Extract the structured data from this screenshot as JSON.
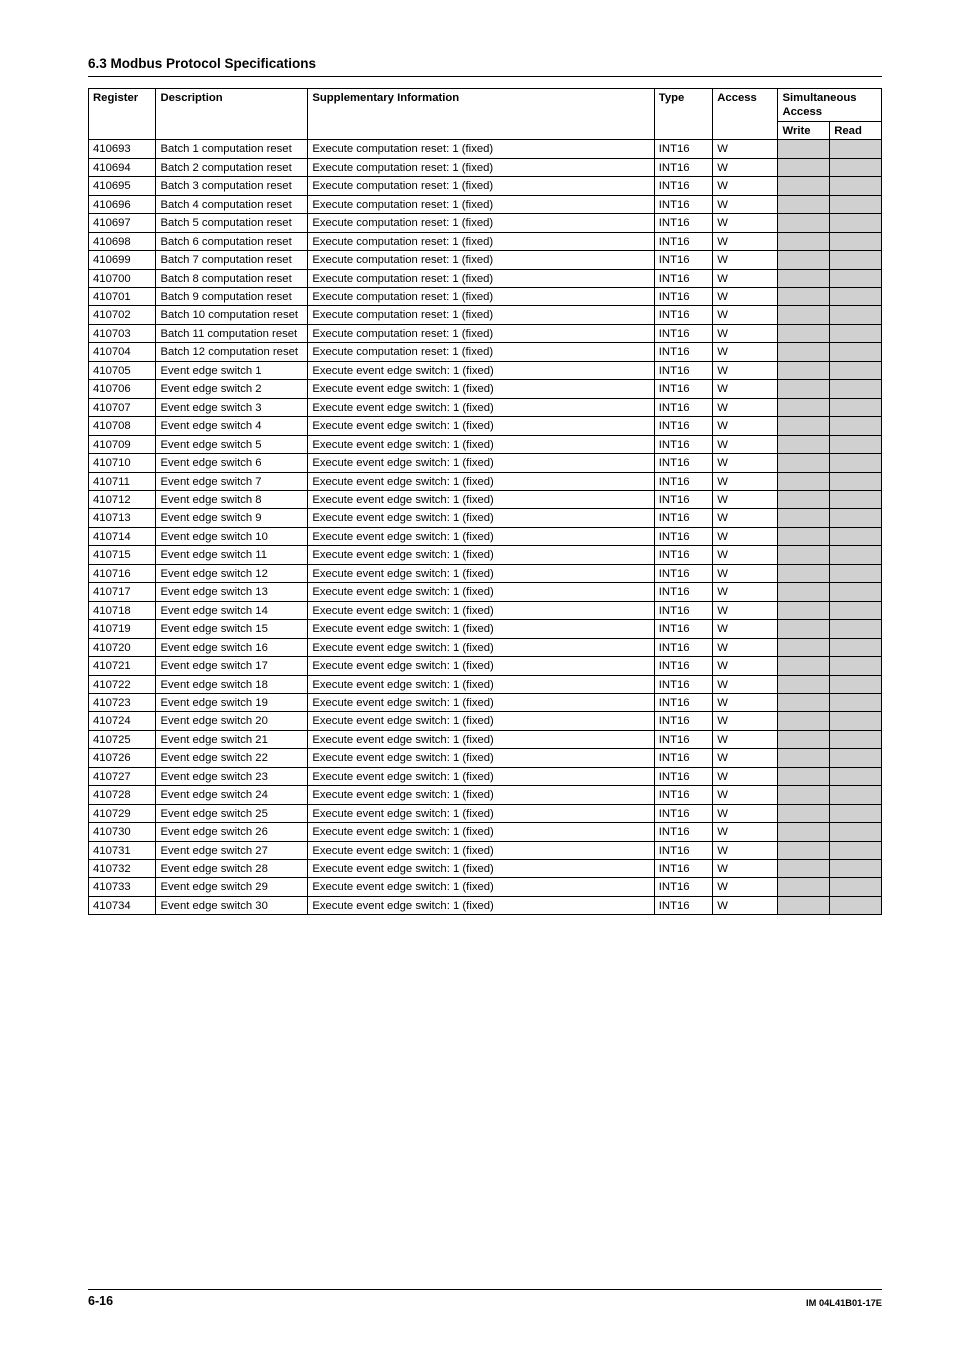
{
  "section_title": "6.3  Modbus Protocol Specifications",
  "headers": {
    "register": "Register",
    "description": "Description",
    "supp": "Supplementary Information",
    "type": "Type",
    "access": "Access",
    "sim_access": "Simultaneous Access",
    "write": "Write",
    "read": "Read"
  },
  "rows": [
    {
      "reg": "410693",
      "desc": "Batch 1 computation reset",
      "supp": "Execute computation reset: 1 (fixed)",
      "type": "INT16",
      "access": "W",
      "write": "",
      "read": ""
    },
    {
      "reg": "410694",
      "desc": "Batch 2 computation reset",
      "supp": "Execute computation reset: 1 (fixed)",
      "type": "INT16",
      "access": "W",
      "write": "",
      "read": ""
    },
    {
      "reg": "410695",
      "desc": "Batch 3 computation reset",
      "supp": "Execute computation reset: 1 (fixed)",
      "type": "INT16",
      "access": "W",
      "write": "",
      "read": ""
    },
    {
      "reg": "410696",
      "desc": "Batch 4 computation reset",
      "supp": "Execute computation reset: 1 (fixed)",
      "type": "INT16",
      "access": "W",
      "write": "",
      "read": ""
    },
    {
      "reg": "410697",
      "desc": "Batch 5 computation reset",
      "supp": "Execute computation reset: 1 (fixed)",
      "type": "INT16",
      "access": "W",
      "write": "",
      "read": ""
    },
    {
      "reg": "410698",
      "desc": "Batch 6 computation reset",
      "supp": "Execute computation reset: 1 (fixed)",
      "type": "INT16",
      "access": "W",
      "write": "",
      "read": ""
    },
    {
      "reg": "410699",
      "desc": "Batch 7 computation reset",
      "supp": "Execute computation reset: 1 (fixed)",
      "type": "INT16",
      "access": "W",
      "write": "",
      "read": ""
    },
    {
      "reg": "410700",
      "desc": "Batch 8 computation reset",
      "supp": "Execute computation reset: 1 (fixed)",
      "type": "INT16",
      "access": "W",
      "write": "",
      "read": ""
    },
    {
      "reg": "410701",
      "desc": "Batch 9 computation reset",
      "supp": "Execute computation reset: 1 (fixed)",
      "type": "INT16",
      "access": "W",
      "write": "",
      "read": ""
    },
    {
      "reg": "410702",
      "desc": "Batch 10 computation reset",
      "supp": "Execute computation reset: 1 (fixed)",
      "type": "INT16",
      "access": "W",
      "write": "",
      "read": ""
    },
    {
      "reg": "410703",
      "desc": "Batch 11 computation reset",
      "supp": "Execute computation reset: 1 (fixed)",
      "type": "INT16",
      "access": "W",
      "write": "",
      "read": ""
    },
    {
      "reg": "410704",
      "desc": "Batch 12 computation reset",
      "supp": "Execute computation reset: 1 (fixed)",
      "type": "INT16",
      "access": "W",
      "write": "",
      "read": ""
    },
    {
      "reg": "410705",
      "desc": "Event edge switch 1",
      "supp": "Execute event edge switch: 1 (fixed)",
      "type": "INT16",
      "access": "W",
      "write": "",
      "read": ""
    },
    {
      "reg": "410706",
      "desc": "Event edge switch 2",
      "supp": "Execute event edge switch: 1 (fixed)",
      "type": "INT16",
      "access": "W",
      "write": "",
      "read": ""
    },
    {
      "reg": "410707",
      "desc": "Event edge switch 3",
      "supp": "Execute event edge switch: 1 (fixed)",
      "type": "INT16",
      "access": "W",
      "write": "",
      "read": ""
    },
    {
      "reg": "410708",
      "desc": "Event edge switch 4",
      "supp": "Execute event edge switch: 1 (fixed)",
      "type": "INT16",
      "access": "W",
      "write": "",
      "read": ""
    },
    {
      "reg": "410709",
      "desc": "Event edge switch 5",
      "supp": "Execute event edge switch: 1 (fixed)",
      "type": "INT16",
      "access": "W",
      "write": "",
      "read": ""
    },
    {
      "reg": "410710",
      "desc": "Event edge switch 6",
      "supp": "Execute event edge switch: 1 (fixed)",
      "type": "INT16",
      "access": "W",
      "write": "",
      "read": ""
    },
    {
      "reg": "410711",
      "desc": "Event edge switch 7",
      "supp": "Execute event edge switch: 1 (fixed)",
      "type": "INT16",
      "access": "W",
      "write": "",
      "read": ""
    },
    {
      "reg": "410712",
      "desc": "Event edge switch 8",
      "supp": "Execute event edge switch: 1 (fixed)",
      "type": "INT16",
      "access": "W",
      "write": "",
      "read": ""
    },
    {
      "reg": "410713",
      "desc": "Event edge switch 9",
      "supp": "Execute event edge switch: 1 (fixed)",
      "type": "INT16",
      "access": "W",
      "write": "",
      "read": ""
    },
    {
      "reg": "410714",
      "desc": "Event edge switch 10",
      "supp": "Execute event edge switch: 1 (fixed)",
      "type": "INT16",
      "access": "W",
      "write": "",
      "read": ""
    },
    {
      "reg": "410715",
      "desc": "Event edge switch 11",
      "supp": "Execute event edge switch: 1 (fixed)",
      "type": "INT16",
      "access": "W",
      "write": "",
      "read": ""
    },
    {
      "reg": "410716",
      "desc": "Event edge switch 12",
      "supp": "Execute event edge switch: 1 (fixed)",
      "type": "INT16",
      "access": "W",
      "write": "",
      "read": ""
    },
    {
      "reg": "410717",
      "desc": "Event edge switch 13",
      "supp": "Execute event edge switch: 1 (fixed)",
      "type": "INT16",
      "access": "W",
      "write": "",
      "read": ""
    },
    {
      "reg": "410718",
      "desc": "Event edge switch 14",
      "supp": "Execute event edge switch: 1 (fixed)",
      "type": "INT16",
      "access": "W",
      "write": "",
      "read": ""
    },
    {
      "reg": "410719",
      "desc": "Event edge switch 15",
      "supp": "Execute event edge switch: 1 (fixed)",
      "type": "INT16",
      "access": "W",
      "write": "",
      "read": ""
    },
    {
      "reg": "410720",
      "desc": "Event edge switch 16",
      "supp": "Execute event edge switch: 1 (fixed)",
      "type": "INT16",
      "access": "W",
      "write": "",
      "read": ""
    },
    {
      "reg": "410721",
      "desc": "Event edge switch 17",
      "supp": "Execute event edge switch: 1 (fixed)",
      "type": "INT16",
      "access": "W",
      "write": "",
      "read": ""
    },
    {
      "reg": "410722",
      "desc": "Event edge switch 18",
      "supp": "Execute event edge switch: 1 (fixed)",
      "type": "INT16",
      "access": "W",
      "write": "",
      "read": ""
    },
    {
      "reg": "410723",
      "desc": "Event edge switch 19",
      "supp": "Execute event edge switch: 1 (fixed)",
      "type": "INT16",
      "access": "W",
      "write": "",
      "read": ""
    },
    {
      "reg": "410724",
      "desc": "Event edge switch 20",
      "supp": "Execute event edge switch: 1 (fixed)",
      "type": "INT16",
      "access": "W",
      "write": "",
      "read": ""
    },
    {
      "reg": "410725",
      "desc": "Event edge switch 21",
      "supp": "Execute event edge switch: 1 (fixed)",
      "type": "INT16",
      "access": "W",
      "write": "",
      "read": ""
    },
    {
      "reg": "410726",
      "desc": "Event edge switch 22",
      "supp": "Execute event edge switch: 1 (fixed)",
      "type": "INT16",
      "access": "W",
      "write": "",
      "read": ""
    },
    {
      "reg": "410727",
      "desc": "Event edge switch 23",
      "supp": "Execute event edge switch: 1 (fixed)",
      "type": "INT16",
      "access": "W",
      "write": "",
      "read": ""
    },
    {
      "reg": "410728",
      "desc": "Event edge switch 24",
      "supp": "Execute event edge switch: 1 (fixed)",
      "type": "INT16",
      "access": "W",
      "write": "",
      "read": ""
    },
    {
      "reg": "410729",
      "desc": "Event edge switch 25",
      "supp": "Execute event edge switch: 1 (fixed)",
      "type": "INT16",
      "access": "W",
      "write": "",
      "read": ""
    },
    {
      "reg": "410730",
      "desc": "Event edge switch 26",
      "supp": "Execute event edge switch: 1 (fixed)",
      "type": "INT16",
      "access": "W",
      "write": "",
      "read": ""
    },
    {
      "reg": "410731",
      "desc": "Event edge switch 27",
      "supp": "Execute event edge switch: 1 (fixed)",
      "type": "INT16",
      "access": "W",
      "write": "",
      "read": ""
    },
    {
      "reg": "410732",
      "desc": "Event edge switch 28",
      "supp": "Execute event edge switch: 1 (fixed)",
      "type": "INT16",
      "access": "W",
      "write": "",
      "read": ""
    },
    {
      "reg": "410733",
      "desc": "Event edge switch 29",
      "supp": "Execute event edge switch: 1 (fixed)",
      "type": "INT16",
      "access": "W",
      "write": "",
      "read": ""
    },
    {
      "reg": "410734",
      "desc": "Event edge switch 30",
      "supp": "Execute event edge switch: 1 (fixed)",
      "type": "INT16",
      "access": "W",
      "write": "",
      "read": ""
    }
  ],
  "footer": {
    "page": "6-16",
    "doc_id": "IM 04L41B01-17E"
  },
  "style": {
    "shade_color": "#d0d0d0",
    "border_color": "#000000",
    "background": "#ffffff",
    "font_family": "Arial, Helvetica, sans-serif",
    "body_font_size_pt": 8.5,
    "title_font_size_pt": 10
  }
}
